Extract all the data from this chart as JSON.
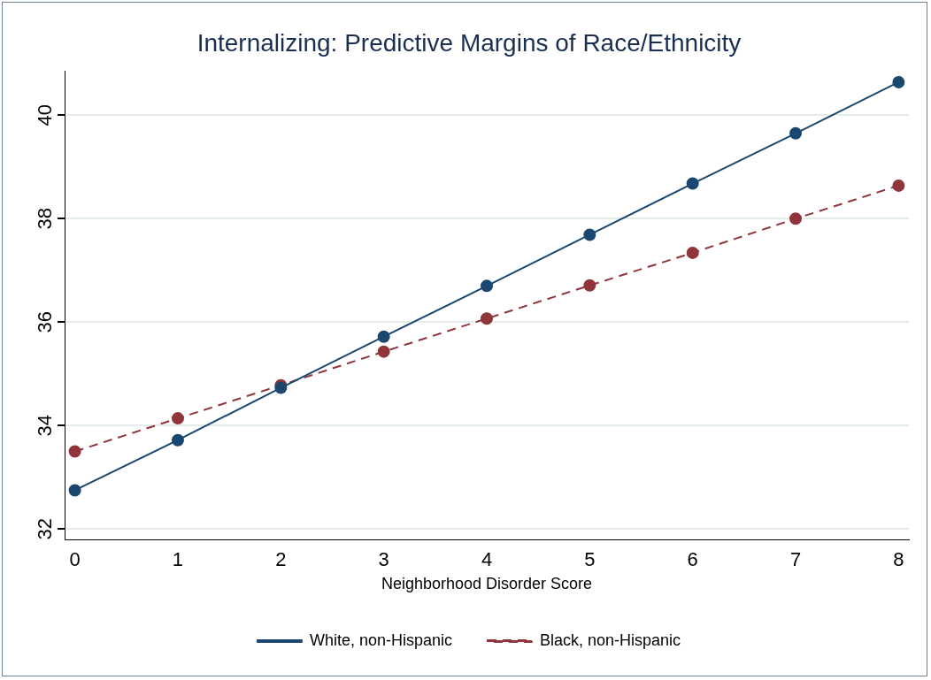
{
  "chart_data": {
    "type": "line",
    "title": "Internalizing: Predictive Margins of Race/Ethnicity",
    "xlabel": "Neighborhood Disorder Score",
    "x": [
      0,
      1,
      2,
      3,
      4,
      5,
      6,
      7,
      8
    ],
    "series": [
      {
        "name": "White, non-Hispanic",
        "color": "#1a476f",
        "line_style": "solid",
        "values": [
          32.75,
          33.72,
          34.73,
          35.72,
          36.7,
          37.69,
          38.68,
          39.65,
          40.64
        ]
      },
      {
        "name": "Black, non-Hispanic",
        "color": "#90353b",
        "line_style": "dashed",
        "values": [
          33.5,
          34.14,
          34.78,
          35.43,
          36.07,
          36.71,
          37.34,
          38.0,
          38.64
        ]
      }
    ],
    "xlim": [
      -0.1,
      8.1
    ],
    "xticks": [
      0,
      1,
      2,
      3,
      4,
      5,
      6,
      7,
      8
    ],
    "ylim": [
      31.8,
      40.85
    ],
    "yticks": [
      32,
      34,
      36,
      38,
      40
    ],
    "grid": "y",
    "legend": "bottom",
    "marker": "circle"
  }
}
